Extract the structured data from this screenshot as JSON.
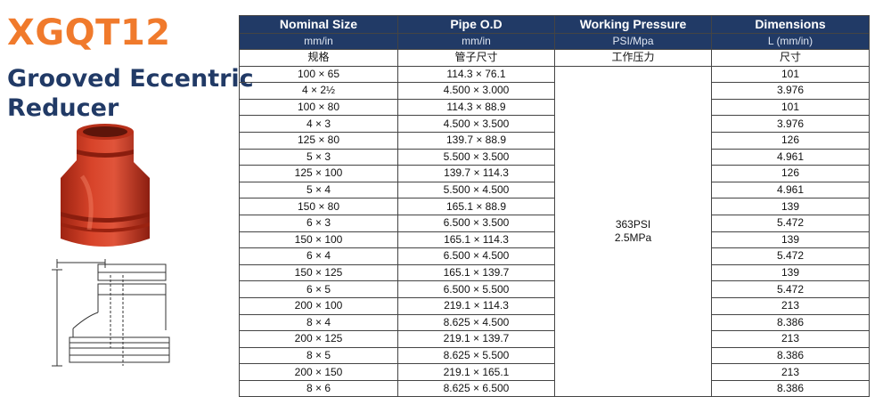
{
  "product": {
    "model": "XGQT12",
    "name_line1": "Grooved Eccentric",
    "name_line2": "Reducer"
  },
  "table": {
    "headers": [
      "Nominal Size",
      "Pipe O.D",
      "Working Pressure",
      "Dimensions"
    ],
    "units": [
      "mm/in",
      "mm/in",
      "PSI/Mpa",
      "L (mm/in)"
    ],
    "cn_headers": [
      "规格",
      "管子尺寸",
      "工作压力",
      "尺寸"
    ],
    "pressure_psi": "363PSI",
    "pressure_mpa": "2.5MPa",
    "rows": [
      {
        "size": "100 × 65",
        "od": "114.3 × 76.1",
        "dim": "101"
      },
      {
        "size": "4 × 2½",
        "od": "4.500 × 3.000",
        "dim": "3.976"
      },
      {
        "size": "100 × 80",
        "od": "114.3 × 88.9",
        "dim": "101"
      },
      {
        "size": "4 × 3",
        "od": "4.500 × 3.500",
        "dim": "3.976"
      },
      {
        "size": "125 × 80",
        "od": "139.7 × 88.9",
        "dim": "126"
      },
      {
        "size": "5 × 3",
        "od": "5.500 × 3.500",
        "dim": "4.961"
      },
      {
        "size": "125 × 100",
        "od": "139.7 × 114.3",
        "dim": "126"
      },
      {
        "size": "5 × 4",
        "od": "5.500 × 4.500",
        "dim": "4.961"
      },
      {
        "size": "150 × 80",
        "od": "165.1 × 88.9",
        "dim": "139"
      },
      {
        "size": "6 × 3",
        "od": "6.500 × 3.500",
        "dim": "5.472"
      },
      {
        "size": "150 × 100",
        "od": "165.1 × 114.3",
        "dim": "139"
      },
      {
        "size": "6 × 4",
        "od": "6.500 × 4.500",
        "dim": "5.472"
      },
      {
        "size": "150 × 125",
        "od": "165.1 × 139.7",
        "dim": "139"
      },
      {
        "size": "6 × 5",
        "od": "6.500 × 5.500",
        "dim": "5.472"
      },
      {
        "size": "200 × 100",
        "od": "219.1 × 114.3",
        "dim": "213"
      },
      {
        "size": "8 × 4",
        "od": "8.625 × 4.500",
        "dim": "8.386"
      },
      {
        "size": "200 × 125",
        "od": "219.1 × 139.7",
        "dim": "213"
      },
      {
        "size": "8 × 5",
        "od": "8.625 × 5.500",
        "dim": "8.386"
      },
      {
        "size": "200 × 150",
        "od": "219.1 × 165.1",
        "dim": "213"
      },
      {
        "size": "8 × 6",
        "od": "8.625 × 6.500",
        "dim": "8.386"
      }
    ]
  },
  "colors": {
    "brand_orange": "#f07a2c",
    "title_navy": "#213a66",
    "header_bg": "#213a66",
    "fitting_red": "#cf3a22"
  }
}
